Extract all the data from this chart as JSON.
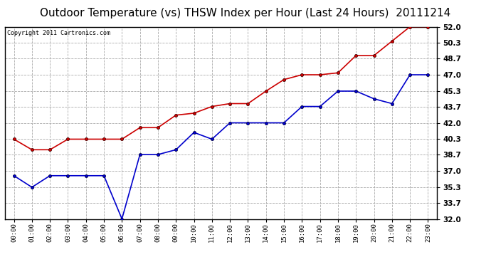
{
  "title": "Outdoor Temperature (vs) THSW Index per Hour (Last 24 Hours)  20111214",
  "copyright": "Copyright 2011 Cartronics.com",
  "x_labels": [
    "00:00",
    "01:00",
    "02:00",
    "03:00",
    "04:00",
    "05:00",
    "06:00",
    "07:00",
    "08:00",
    "09:00",
    "10:00",
    "11:00",
    "12:00",
    "13:00",
    "14:00",
    "15:00",
    "16:00",
    "17:00",
    "18:00",
    "19:00",
    "20:00",
    "21:00",
    "22:00",
    "23:00"
  ],
  "thsw_data": [
    40.3,
    39.2,
    39.2,
    40.3,
    40.3,
    40.3,
    40.3,
    41.5,
    41.5,
    42.8,
    43.0,
    43.7,
    44.0,
    44.0,
    45.3,
    46.5,
    47.0,
    47.0,
    47.2,
    49.0,
    49.0,
    50.5,
    52.0,
    52.0
  ],
  "temp_data": [
    36.5,
    35.3,
    36.5,
    36.5,
    36.5,
    36.5,
    32.0,
    38.7,
    38.7,
    39.2,
    41.0,
    40.3,
    42.0,
    42.0,
    42.0,
    42.0,
    43.7,
    43.7,
    45.3,
    45.3,
    44.5,
    44.0,
    47.0,
    47.0
  ],
  "thsw_color": "#cc0000",
  "temp_color": "#0000cc",
  "ylim": [
    32.0,
    52.0
  ],
  "ytick_vals": [
    32.0,
    33.7,
    35.3,
    37.0,
    38.7,
    40.3,
    42.0,
    43.7,
    45.3,
    47.0,
    48.7,
    50.3,
    52.0
  ],
  "ytick_labels": [
    "32.0",
    "33.7",
    "35.3",
    "37.0",
    "38.7",
    "40.3",
    "42.0",
    "43.7",
    "45.3",
    "47.0",
    "48.7",
    "50.3",
    "52.0"
  ],
  "background_color": "#ffffff",
  "grid_color": "#aaaaaa",
  "title_fontsize": 11,
  "copyright_fontsize": 6,
  "marker": "o",
  "marker_size": 3,
  "line_width": 1.2
}
